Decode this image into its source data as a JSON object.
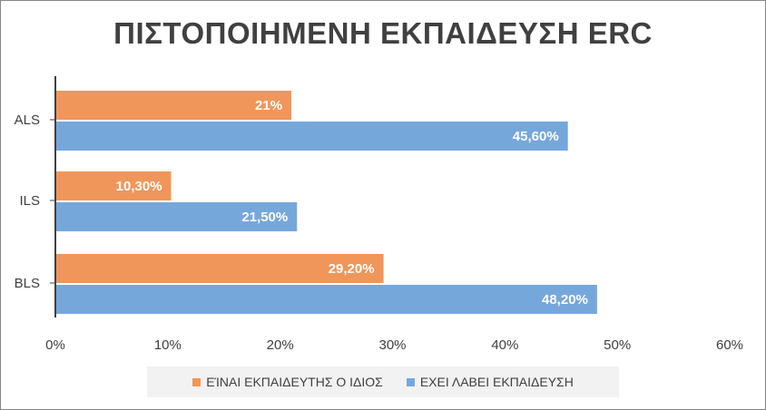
{
  "chart_data": {
    "type": "bar",
    "orientation": "horizontal",
    "title": "ΠΙΣΤΟΠΟΙΗΜΕΝΗ ΕΚΠΑΙΔΕΥΣΗ ERC",
    "categories": [
      "ALS",
      "ILS",
      "BLS"
    ],
    "series": [
      {
        "name": "ΕΊΝΑΙ ΕΚΠΑΙΔΕΥΤΗΣ Ο ΙΔΙΟΣ",
        "color": "#f0965a",
        "values": [
          21,
          10.3,
          29.2
        ],
        "labels": [
          "21%",
          "10,30%",
          "29,20%"
        ]
      },
      {
        "name": "ΕΧΕΙ ΛΑΒΕΙ ΕΚΠΑΙΔΕΥΣΗ",
        "color": "#76a7db",
        "values": [
          45.6,
          21.5,
          48.2
        ],
        "labels": [
          "45,60%",
          "21,50%",
          "48,20%"
        ]
      }
    ],
    "xlim": [
      0,
      60
    ],
    "x_ticks": [
      0,
      10,
      20,
      30,
      40,
      50,
      60
    ],
    "x_tick_labels": [
      "0%",
      "10%",
      "20%",
      "30%",
      "40%",
      "50%",
      "60%"
    ],
    "grid": false,
    "legend_position": "bottom"
  }
}
